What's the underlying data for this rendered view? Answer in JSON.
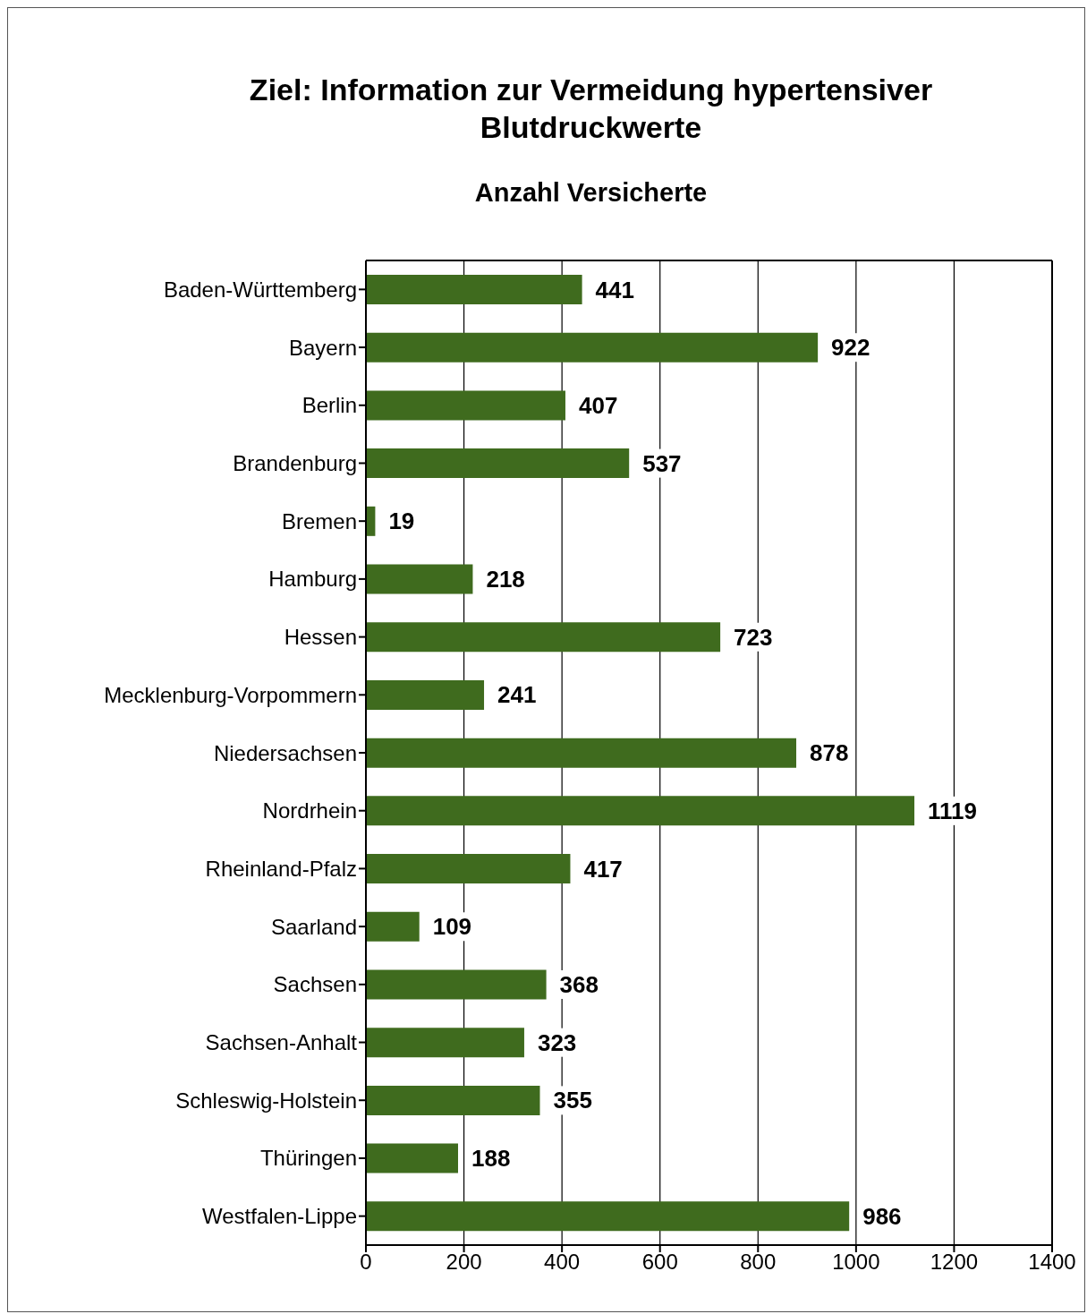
{
  "chart_data": {
    "type": "bar",
    "orientation": "horizontal",
    "title": "Ziel: Information zur Vermeidung hypertensiver Blutdruckwerte",
    "subtitle": "Anzahl Versicherte",
    "categories": [
      "Baden-Württemberg",
      "Bayern",
      "Berlin",
      "Brandenburg",
      "Bremen",
      "Hamburg",
      "Hessen",
      "Mecklenburg-Vorpommern",
      "Niedersachsen",
      "Nordrhein",
      "Rheinland-Pfalz",
      "Saarland",
      "Sachsen",
      "Sachsen-Anhalt",
      "Schleswig-Holstein",
      "Thüringen",
      "Westfalen-Lippe"
    ],
    "values": [
      441,
      922,
      407,
      537,
      19,
      218,
      723,
      241,
      878,
      1119,
      417,
      109,
      368,
      323,
      355,
      188,
      986
    ],
    "color": "#3f6b1e",
    "xlim": [
      0,
      1400
    ],
    "xticks": [
      0,
      200,
      400,
      600,
      800,
      1000,
      1200,
      1400
    ],
    "grid": "x",
    "data_labels": true
  }
}
